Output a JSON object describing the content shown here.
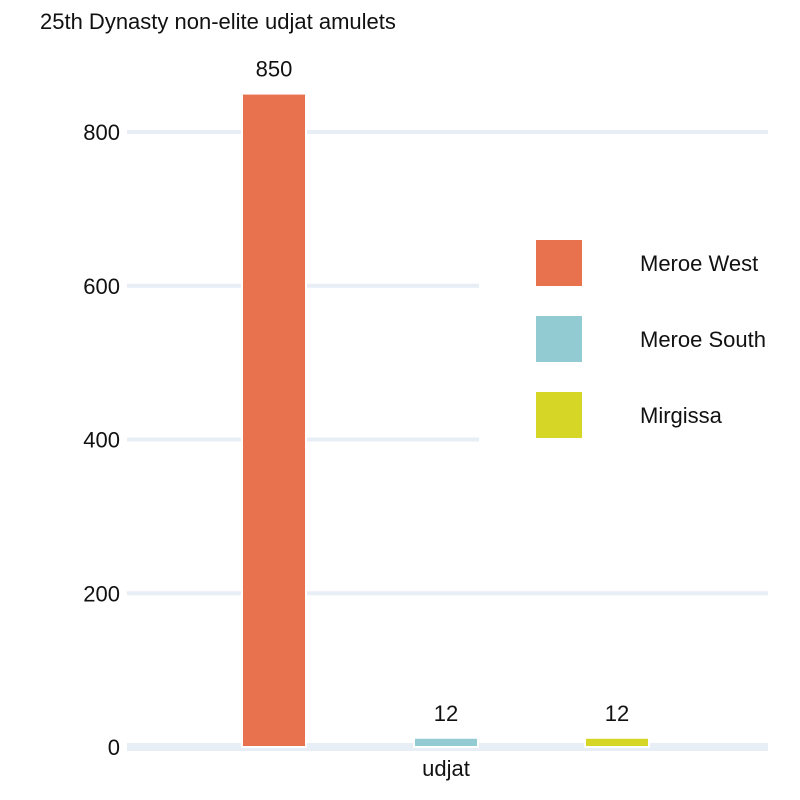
{
  "chart_data": {
    "type": "bar",
    "title": "25th Dynasty non-elite udjat amulets",
    "categories": [
      "udjat"
    ],
    "series": [
      {
        "name": "Meroe West",
        "values": [
          850
        ],
        "color": "#e8724d"
      },
      {
        "name": "Meroe South",
        "values": [
          12
        ],
        "color": "#92cbd2"
      },
      {
        "name": "Mirgissa",
        "values": [
          12
        ],
        "color": "#d6d626"
      }
    ],
    "data_labels": [
      "850",
      "12",
      "12"
    ],
    "y_ticks": [
      0,
      200,
      400,
      600,
      800
    ],
    "ylim": [
      0,
      850
    ],
    "grid": "horizontal",
    "grid_color": "#e8eef6",
    "legend_position": "right"
  }
}
